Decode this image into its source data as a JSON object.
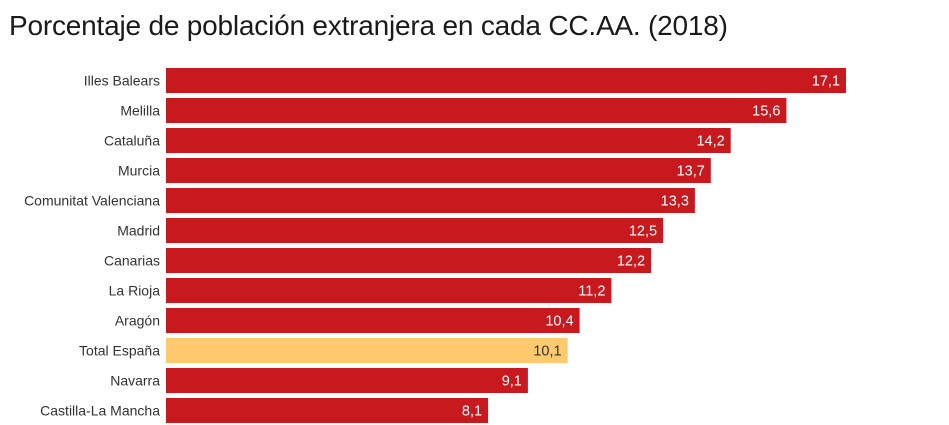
{
  "chart_data": {
    "type": "bar",
    "orientation": "horizontal",
    "title": "Porcentaje de población extranjera en cada CC.AA. (2018)",
    "xlabel": "",
    "ylabel": "",
    "xlim": [
      0,
      17.1
    ],
    "grid": false,
    "legend": "none",
    "categories": [
      "Illes Balears",
      "Melilla",
      "Cataluña",
      "Murcia",
      "Comunitat Valenciana",
      "Madrid",
      "Canarias",
      "La Rioja",
      "Aragón",
      "Total España",
      "Navarra",
      "Castilla-La Mancha"
    ],
    "values": [
      17.1,
      15.6,
      14.2,
      13.7,
      13.3,
      12.5,
      12.2,
      11.2,
      10.4,
      10.1,
      9.1,
      8.1
    ],
    "value_labels": [
      "17,1",
      "15,6",
      "14,2",
      "13,7",
      "13,3",
      "12,5",
      "12,2",
      "11,2",
      "10,4",
      "10,1",
      "9,1",
      "8,1"
    ],
    "highlight_category": "Total España",
    "colors": {
      "bar": "#c8191e",
      "highlight": "#ffc96e",
      "value_text": "#ffffff",
      "highlight_value_text": "#333333"
    }
  }
}
